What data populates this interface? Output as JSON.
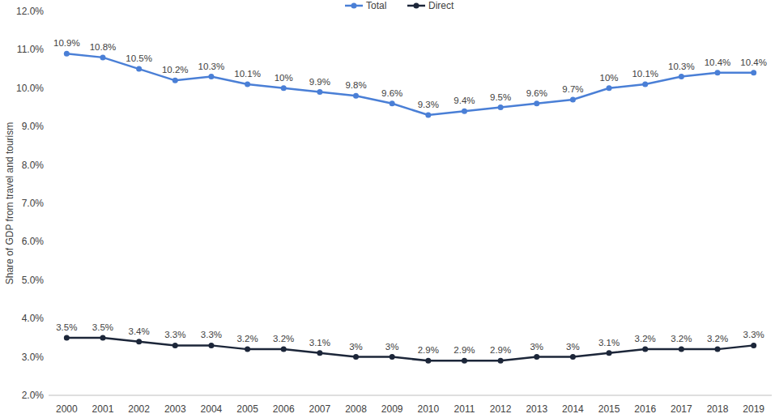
{
  "chart_data": {
    "type": "line",
    "y_label": "Share of GDP from travel and tourism",
    "categories": [
      "2000",
      "2001",
      "2002",
      "2003",
      "2004",
      "2005",
      "2006",
      "2007",
      "2008",
      "2009",
      "2010",
      "2011",
      "2012",
      "2013",
      "2014",
      "2015",
      "2016",
      "2017",
      "2018",
      "2019"
    ],
    "series": [
      {
        "name": "Total",
        "color": "#4a7fd6",
        "marker": "circle",
        "values": [
          10.9,
          10.8,
          10.5,
          10.2,
          10.3,
          10.1,
          10,
          9.9,
          9.8,
          9.6,
          9.3,
          9.4,
          9.5,
          9.6,
          9.7,
          10,
          10.1,
          10.3,
          10.4,
          10.4
        ],
        "value_labels": [
          "10.9%",
          "10.8%",
          "10.5%",
          "10.2%",
          "10.3%",
          "10.1%",
          "10%",
          "9.9%",
          "9.8%",
          "9.6%",
          "9.3%",
          "9.4%",
          "9.5%",
          "9.6%",
          "9.7%",
          "10%",
          "10.1%",
          "10.3%",
          "10.4%",
          "10.4%"
        ]
      },
      {
        "name": "Direct",
        "color": "#1c2639",
        "marker": "circle",
        "values": [
          3.5,
          3.5,
          3.4,
          3.3,
          3.3,
          3.2,
          3.2,
          3.1,
          3,
          3,
          2.9,
          2.9,
          2.9,
          3,
          3,
          3.1,
          3.2,
          3.2,
          3.2,
          3.3
        ],
        "value_labels": [
          "3.5%",
          "3.5%",
          "3.4%",
          "3.3%",
          "3.3%",
          "3.2%",
          "3.2%",
          "3.1%",
          "3%",
          "3%",
          "2.9%",
          "2.9%",
          "2.9%",
          "3%",
          "3%",
          "3.1%",
          "3.2%",
          "3.2%",
          "3.2%",
          "3.3%"
        ]
      }
    ],
    "ylim": [
      2,
      12
    ],
    "yticks": [
      {
        "value": 2,
        "label": "2.0%"
      },
      {
        "value": 3,
        "label": "3.0%"
      },
      {
        "value": 4,
        "label": "4.0%"
      },
      {
        "value": 5,
        "label": "5.0%"
      },
      {
        "value": 6,
        "label": "6.0%"
      },
      {
        "value": 7,
        "label": "7.0%"
      },
      {
        "value": 8,
        "label": "8.0%"
      },
      {
        "value": 9,
        "label": "9.0%"
      },
      {
        "value": 10,
        "label": "10.0%"
      },
      {
        "value": 11,
        "label": "11.0%"
      },
      {
        "value": 12,
        "label": "12.0%"
      }
    ],
    "grid": false,
    "legend": "top",
    "data_labels": true
  }
}
